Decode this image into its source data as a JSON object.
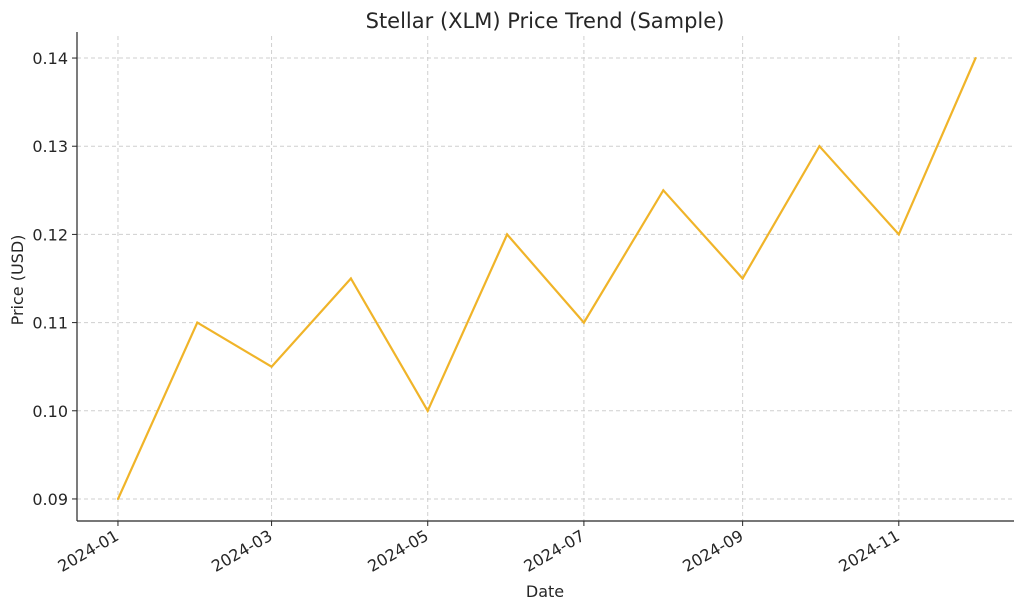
{
  "chart_data": {
    "type": "line",
    "title": "Stellar (XLM) Price Trend (Sample)",
    "xlabel": "Date",
    "ylabel": "Price (USD)",
    "x": [
      "2024-01-01",
      "2024-02-01",
      "2024-03-01",
      "2024-04-01",
      "2024-05-01",
      "2024-06-01",
      "2024-07-01",
      "2024-08-01",
      "2024-09-01",
      "2024-10-01",
      "2024-11-01",
      "2024-12-01"
    ],
    "series": [
      {
        "values": [
          0.09,
          0.11,
          0.105,
          0.115,
          0.1,
          0.12,
          0.11,
          0.125,
          0.115,
          0.13,
          0.12,
          0.14
        ],
        "color": "#f0b429"
      }
    ],
    "xticks": [
      "2024-01",
      "2024-03",
      "2024-05",
      "2024-07",
      "2024-09",
      "2024-11"
    ],
    "yticks": [
      "0.09",
      "0.10",
      "0.11",
      "0.12",
      "0.13",
      "0.14"
    ],
    "ylim": [
      0.0875,
      0.1425
    ],
    "grid": true,
    "legend": "none"
  }
}
